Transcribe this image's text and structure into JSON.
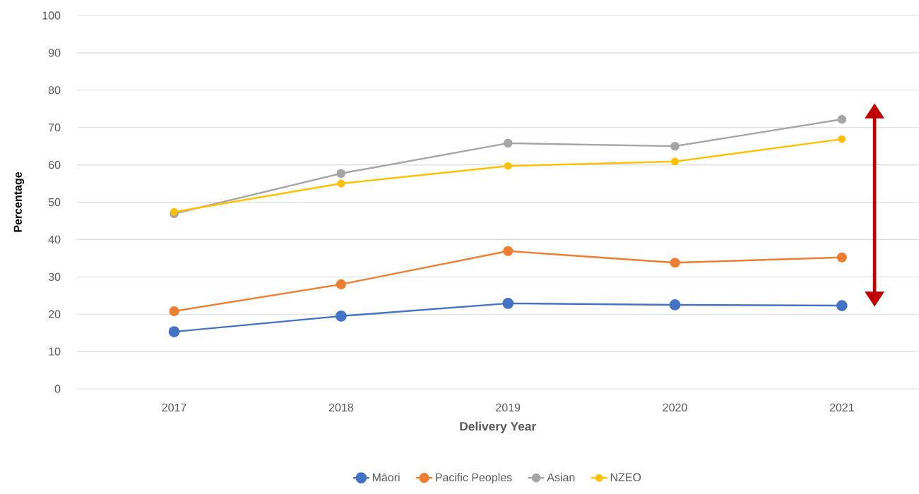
{
  "chart_data": {
    "type": "line",
    "xlabel": "Delivery Year",
    "ylabel": "Percentage",
    "categories": [
      "2017",
      "2018",
      "2019",
      "2020",
      "2021"
    ],
    "series": [
      {
        "name": "Māori",
        "color": "#4472c4",
        "values": [
          15.3,
          19.5,
          22.9,
          22.5,
          22.3
        ]
      },
      {
        "name": "Pacific Peoples",
        "color": "#ed7d31",
        "values": [
          20.8,
          28.0,
          36.9,
          33.8,
          35.2
        ]
      },
      {
        "name": "Asian",
        "color": "#a5a5a5",
        "values": [
          46.9,
          57.7,
          65.8,
          65.0,
          72.2
        ]
      },
      {
        "name": "NZEO",
        "color": "#ffc000",
        "values": [
          47.4,
          55.0,
          59.7,
          60.9,
          66.9
        ]
      }
    ],
    "ylim": [
      0,
      100
    ],
    "yticks": [
      0,
      10,
      20,
      30,
      40,
      50,
      60,
      70,
      80,
      90,
      100
    ],
    "grid": "y",
    "legend": "bottom",
    "marker": "circle",
    "line_style": "solid"
  }
}
